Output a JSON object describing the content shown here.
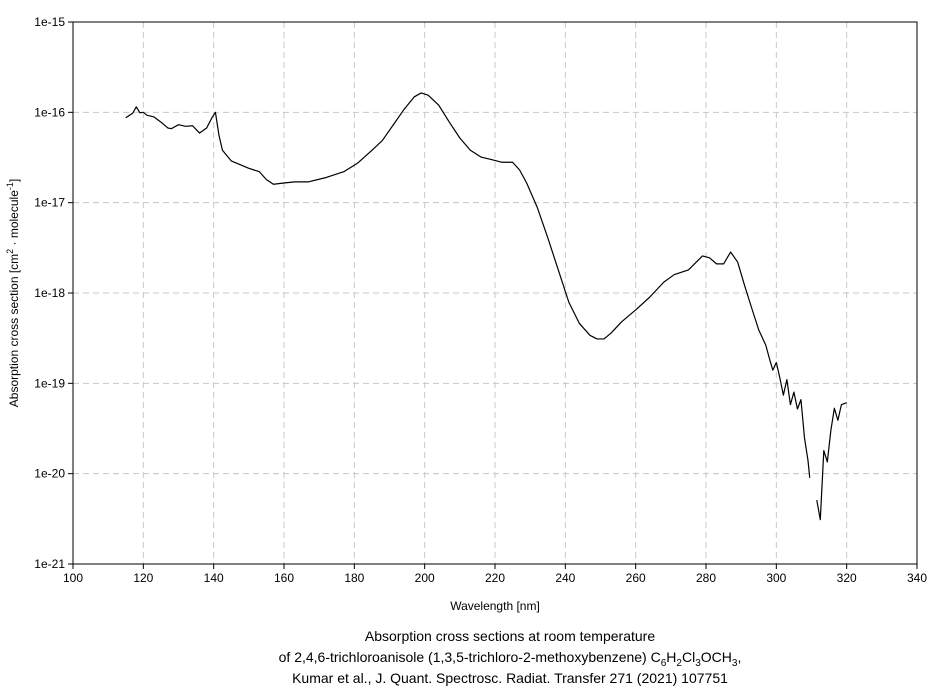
{
  "chart_data": {
    "type": "line",
    "xlabel": "Wavelength [nm]",
    "ylabel": [
      "Absorption cross section [cm",
      "2",
      " · molecule",
      "-1",
      "]"
    ],
    "caption": [
      [
        "Absorption cross sections at room temperature"
      ],
      [
        "of 2,4,6-trichloroanisole (1,3,5-trichloro-2-methoxybenzene) C",
        "6",
        "H",
        "2",
        "Cl",
        "3",
        "OCH",
        "3",
        ","
      ],
      [
        "Kumar et al., J. Quant. Spectrosc. Radiat. Transfer 271 (2021) 107751"
      ]
    ],
    "xlim": [
      100,
      340
    ],
    "xticks": [
      100,
      120,
      140,
      160,
      180,
      200,
      220,
      240,
      260,
      280,
      300,
      320,
      340
    ],
    "ylim": [
      1e-21,
      1e-15
    ],
    "yticks": [
      {
        "value": 1e-21,
        "label": "1e-21"
      },
      {
        "value": 1e-20,
        "label": "1e-20"
      },
      {
        "value": 1e-19,
        "label": "1e-19"
      },
      {
        "value": 1e-18,
        "label": "1e-18"
      },
      {
        "value": 1e-17,
        "label": "1e-17"
      },
      {
        "value": 1e-16,
        "label": "1e-16"
      },
      {
        "value": 1e-15,
        "label": "1e-15"
      }
    ],
    "log_y": true,
    "grid": true,
    "series": [
      {
        "color": "#000000",
        "x": [
          115,
          117,
          118,
          119,
          120,
          121,
          123,
          125,
          127,
          128,
          130,
          132,
          134,
          136,
          138,
          139.5,
          140.5,
          141.5,
          142.5,
          145,
          150,
          153,
          155,
          157,
          160,
          163,
          167,
          172,
          177,
          181,
          185,
          188,
          191,
          194,
          197,
          199,
          201,
          204,
          207,
          210,
          213,
          216,
          219,
          222,
          225,
          227,
          229,
          232,
          235,
          238,
          241,
          244,
          247,
          249,
          251,
          253,
          256,
          260,
          264,
          268,
          271,
          275,
          277,
          279,
          281,
          283,
          285,
          287,
          289,
          291,
          293,
          295,
          297,
          298,
          299,
          300,
          301,
          302,
          303,
          304,
          305,
          306,
          307,
          308,
          309,
          309.5,
          310.5,
          311.5,
          312.5,
          313.5,
          314.5,
          315.5,
          316.5,
          317.5,
          318.5,
          320
        ],
        "values": [
          8.7e-17,
          9.8e-17,
          1.15e-16,
          9.9e-17,
          1e-16,
          9.3e-17,
          8.9e-17,
          7.8e-17,
          6.7e-17,
          6.6e-17,
          7.3e-17,
          7e-17,
          7.1e-17,
          5.9e-17,
          6.7e-17,
          8.7e-17,
          1e-16,
          5.6e-17,
          3.8e-17,
          2.9e-17,
          2.4e-17,
          2.2e-17,
          1.8e-17,
          1.6e-17,
          1.65e-17,
          1.7e-17,
          1.7e-17,
          1.9e-17,
          2.2e-17,
          2.75e-17,
          3.8e-17,
          4.9e-17,
          7.2e-17,
          1.06e-16,
          1.48e-16,
          1.64e-16,
          1.55e-16,
          1.2e-16,
          7.8e-17,
          5.2e-17,
          3.8e-17,
          3.2e-17,
          3e-17,
          2.8e-17,
          2.8e-17,
          2.3e-17,
          1.65e-17,
          8.9e-18,
          4.1e-18,
          1.8e-18,
          7.9e-19,
          4.6e-19,
          3.4e-19,
          3.1e-19,
          3.1e-19,
          3.6e-19,
          4.8e-19,
          6.5e-19,
          9e-19,
          1.32e-18,
          1.6e-18,
          1.8e-18,
          2.15e-18,
          2.57e-18,
          2.45e-18,
          2.1e-18,
          2.1e-18,
          2.84e-18,
          2.2e-18,
          1.2e-18,
          6.8e-19,
          3.9e-19,
          2.65e-19,
          1.9e-19,
          1.4e-19,
          1.7e-19,
          1.15e-19,
          7.4e-20,
          1.1e-19,
          5.8e-20,
          8e-20,
          5.2e-20,
          6.6e-20,
          2.5e-20,
          1.4e-20,
          9e-21,
          null,
          5.1e-21,
          3.1e-21,
          1.8e-20,
          1.35e-20,
          3e-20,
          5.3e-20,
          3.9e-20,
          5.8e-20,
          6.1e-20
        ]
      }
    ]
  }
}
